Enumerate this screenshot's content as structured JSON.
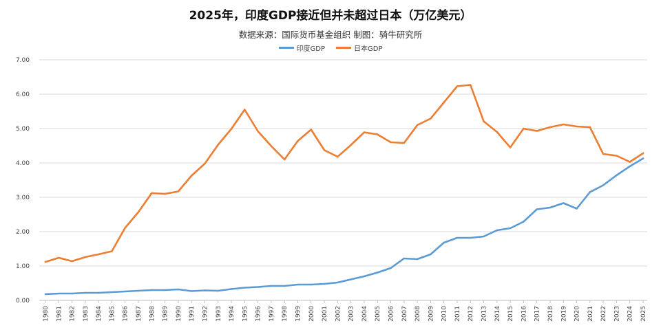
{
  "chart_data": {
    "type": "line",
    "title": "2025年，印度GDP接近但并未超过日本（万亿美元）",
    "subtitle": "数据来源：国际货币基金组织  制图：骑牛研究所",
    "legend_position": "top",
    "grid": true,
    "ylim": [
      0,
      7
    ],
    "yticks": [
      "0.00",
      "1.00",
      "2.00",
      "3.00",
      "4.00",
      "5.00",
      "6.00",
      "7.00"
    ],
    "x": [
      "1980",
      "1981",
      "1982",
      "1983",
      "1984",
      "1985",
      "1986",
      "1987",
      "1988",
      "1989",
      "1990",
      "1991",
      "1992",
      "1993",
      "1994",
      "1995",
      "1996",
      "1997",
      "1998",
      "1999",
      "2000",
      "2001",
      "2002",
      "2003",
      "2004",
      "2005",
      "2006",
      "2007",
      "2008",
      "2009",
      "2010",
      "2011",
      "2012",
      "2013",
      "2014",
      "2015",
      "2016",
      "2017",
      "2018",
      "2019",
      "2020",
      "2021",
      "2022",
      "2023",
      "2024",
      "2025"
    ],
    "series": [
      {
        "name": "印度GDP",
        "color": "#5b9bd5",
        "values": [
          0.18,
          0.2,
          0.2,
          0.22,
          0.22,
          0.24,
          0.26,
          0.28,
          0.3,
          0.3,
          0.32,
          0.27,
          0.29,
          0.28,
          0.33,
          0.37,
          0.39,
          0.42,
          0.42,
          0.46,
          0.46,
          0.48,
          0.52,
          0.61,
          0.7,
          0.81,
          0.94,
          1.22,
          1.2,
          1.34,
          1.68,
          1.82,
          1.82,
          1.86,
          2.04,
          2.1,
          2.29,
          2.65,
          2.7,
          2.83,
          2.67,
          3.15,
          3.35,
          3.64,
          3.9,
          4.13
        ]
      },
      {
        "name": "日本GDP",
        "color": "#ed7d31",
        "values": [
          1.12,
          1.24,
          1.14,
          1.26,
          1.34,
          1.43,
          2.11,
          2.57,
          3.12,
          3.1,
          3.17,
          3.63,
          3.98,
          4.53,
          4.99,
          5.55,
          4.92,
          4.49,
          4.1,
          4.64,
          4.97,
          4.37,
          4.18,
          4.52,
          4.89,
          4.83,
          4.6,
          4.58,
          5.1,
          5.29,
          5.76,
          6.23,
          6.27,
          5.21,
          4.9,
          4.45,
          5.0,
          4.93,
          5.04,
          5.12,
          5.06,
          5.04,
          4.26,
          4.21,
          4.03,
          4.28
        ]
      }
    ]
  }
}
